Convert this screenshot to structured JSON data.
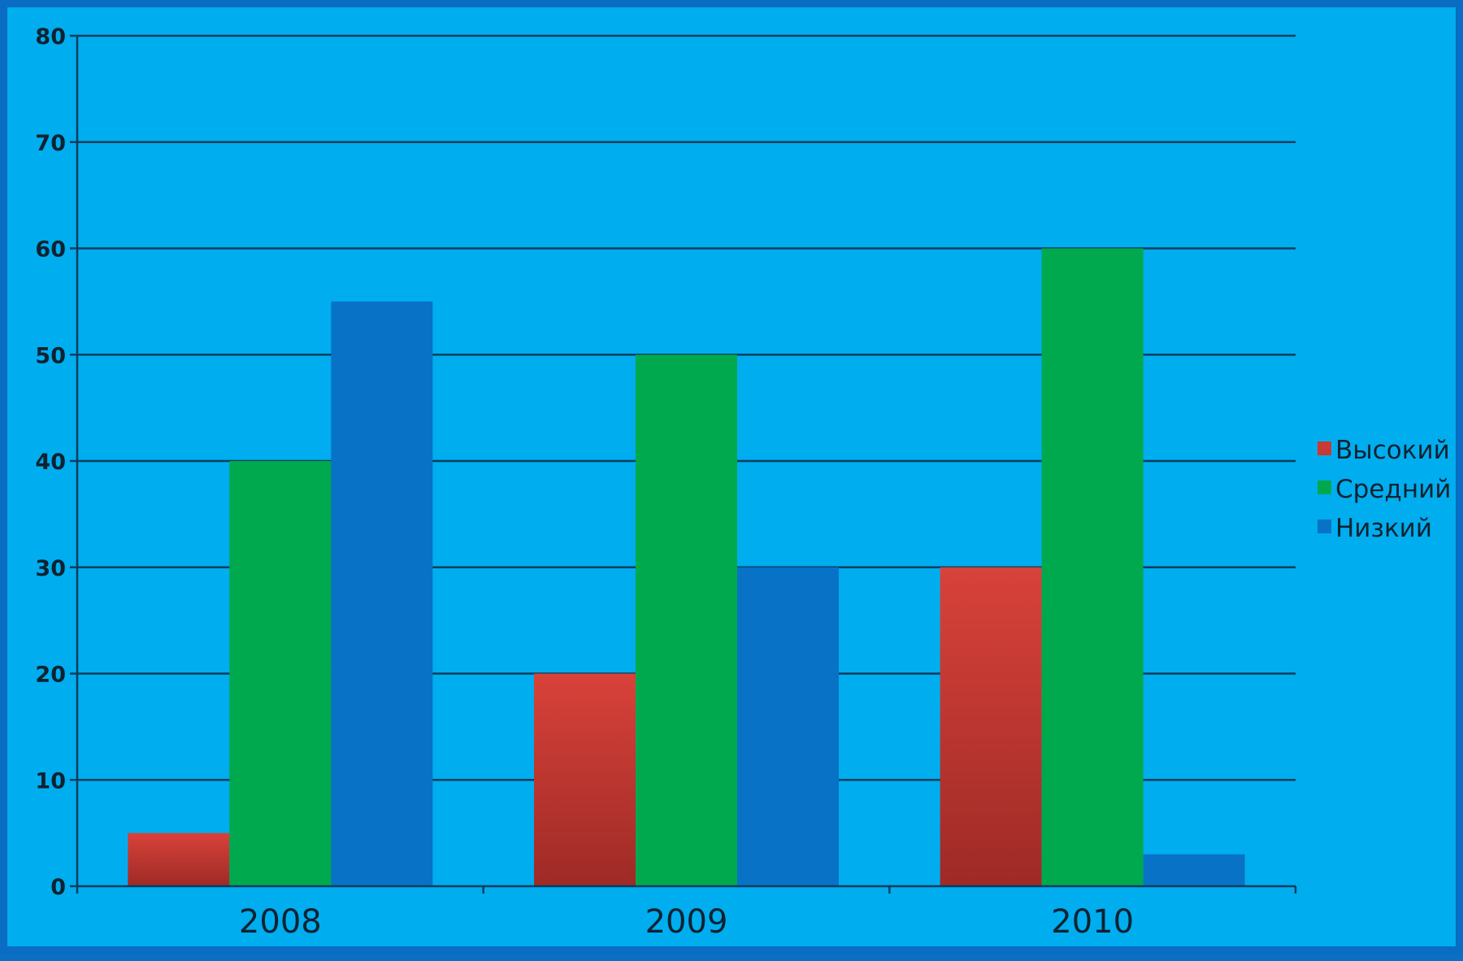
{
  "chart_data": {
    "type": "bar",
    "categories": [
      "2008",
      "2009",
      "2010"
    ],
    "series": [
      {
        "name": "Высокий",
        "values": [
          5,
          20,
          30
        ],
        "color": "#c83a34"
      },
      {
        "name": "Средний",
        "values": [
          40,
          50,
          60
        ],
        "color": "#00a94d"
      },
      {
        "name": "Низкий",
        "values": [
          55,
          30,
          3
        ],
        "color": "#0872c6"
      }
    ],
    "ylim": [
      0,
      80
    ],
    "yticks": [
      0,
      10,
      20,
      30,
      40,
      50,
      60,
      70,
      80
    ],
    "grid": true,
    "legend_position": "right",
    "background_color": "#00adef",
    "gridline_color": "#0b3d5c"
  }
}
